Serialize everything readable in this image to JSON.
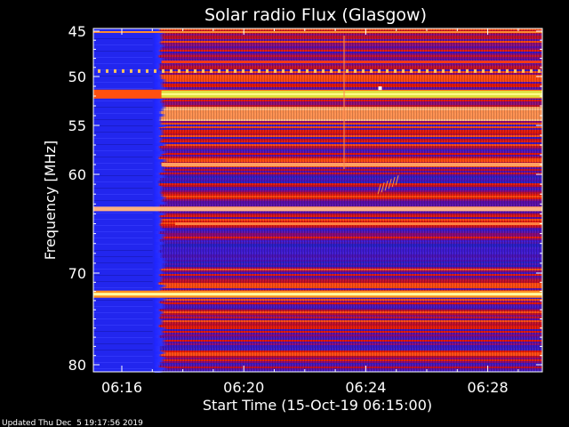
{
  "chart_data": {
    "type": "heatmap",
    "title": "Solar radio Flux (Glasgow)",
    "xlabel": "Start Time (15-Oct-19 06:15:00)",
    "ylabel": "Frequency [MHz]",
    "footer": "Updated Thu Dec  5 19:17:56 2019",
    "x_ticks": [
      "06:16",
      "06:20",
      "06:24",
      "06:28"
    ],
    "x_tick_minutes": [
      16,
      20,
      24,
      28
    ],
    "xlim_minutes": [
      15,
      30
    ],
    "y_ticks": [
      45,
      50,
      55,
      60,
      70,
      80
    ],
    "ylim_mhz": [
      45,
      80
    ],
    "y_scale": "nonlinear (compressed toward high frequency)",
    "grid": false,
    "colormap": [
      "#2020c0",
      "#5a10a0",
      "#b01050",
      "#e02010",
      "#ff6a10",
      "#ffb070",
      "#ffff40"
    ],
    "features": [
      {
        "label": "data gap / low-signal column",
        "x_minutes": [
          15.0,
          17.3
        ]
      },
      {
        "label": "intense band",
        "mhz": 51.8
      },
      {
        "label": "intense band",
        "mhz": 72.3
      },
      {
        "label": "moderate band",
        "mhz": 59.0
      },
      {
        "label": "moderate band",
        "mhz": 63.5
      }
    ]
  }
}
